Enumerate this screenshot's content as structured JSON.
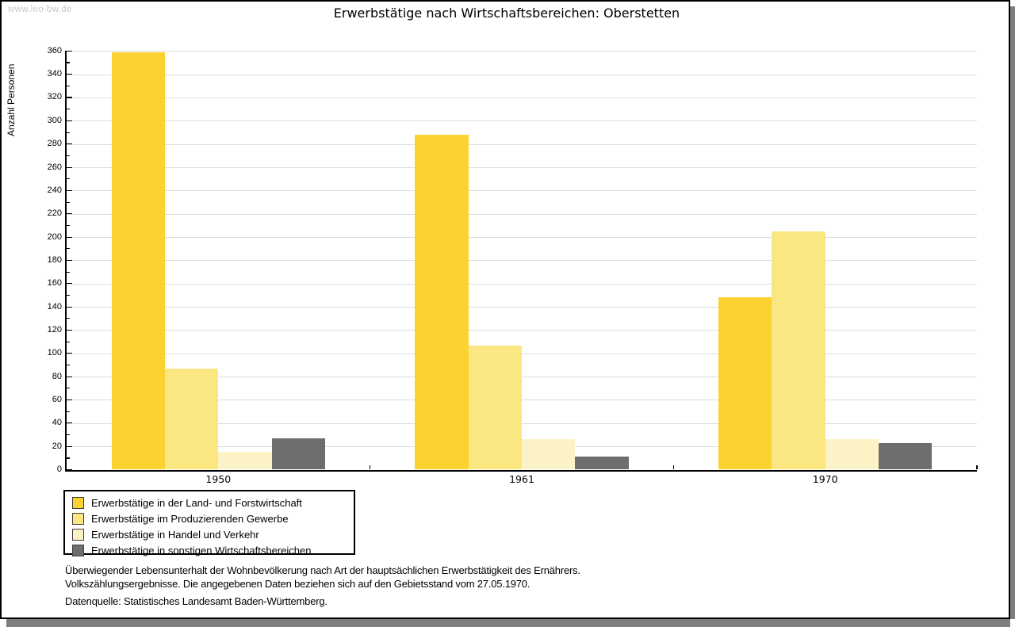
{
  "watermark": "www.leo-bw.de",
  "title": "Erwerbstätige nach Wirtschaftsbereichen: Oberstetten",
  "chart_data": {
    "type": "bar",
    "title": "Erwerbstätige nach Wirtschaftsbereichen: Oberstetten",
    "xlabel": "",
    "ylabel": "Anzahl Personen",
    "categories": [
      "1950",
      "1961",
      "1970"
    ],
    "series": [
      {
        "name": "Erwerbstätige in der Land- und Forstwirtschaft",
        "color": "#FBD22F",
        "values": [
          359,
          288,
          148
        ]
      },
      {
        "name": "Erwerbstätige im Produzierenden Gewerbe",
        "color": "#FAE781",
        "values": [
          87,
          107,
          205
        ]
      },
      {
        "name": "Erwerbstätige in Handel und Verkehr",
        "color": "#FBF3C6",
        "values": [
          15,
          26,
          26
        ]
      },
      {
        "name": "Erwerbstätige in sonstigen Wirtschaftsbereichen",
        "color": "#6E6E6E",
        "values": [
          27,
          11,
          23
        ]
      }
    ],
    "ylim": [
      0,
      360
    ],
    "ytick_major": 20,
    "ytick_minor": 10,
    "grid": true,
    "gridline_color": "#dcdcdc",
    "legend_position": "bottom-left"
  },
  "footer": {
    "line1": "Überwiegender Lebensunterhalt der Wohnbevölkerung nach Art der hauptsächlichen Erwerbstätigkeit des Ernährers.",
    "line2": "Volkszählungsergebnisse. Die angegebenen Daten beziehen sich auf den Gebietsstand vom 27.05.1970.",
    "line3": "Datenquelle: Statistisches Landesamt Baden-Württemberg."
  }
}
